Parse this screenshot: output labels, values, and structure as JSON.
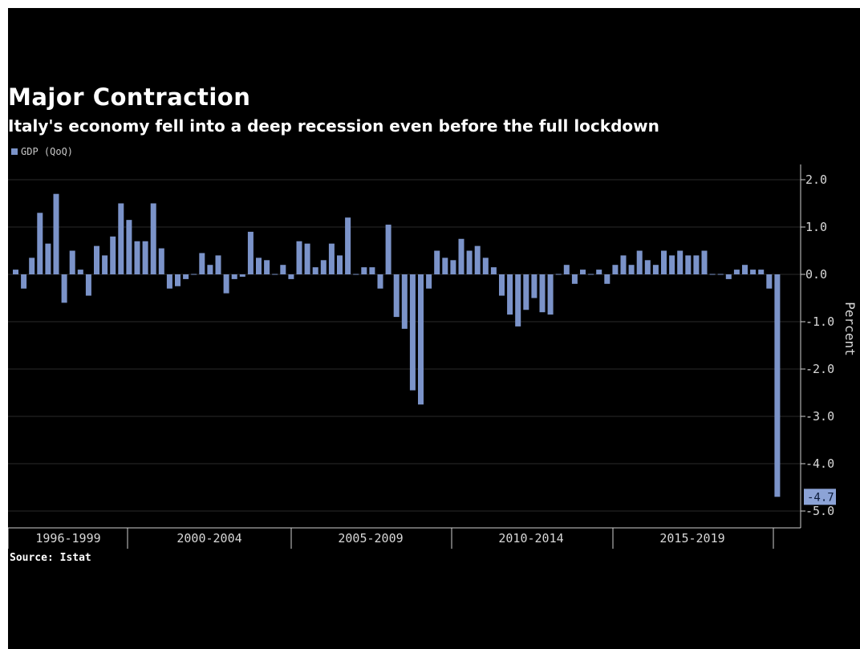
{
  "chart_data": {
    "type": "bar",
    "title": "Major Contraction",
    "subtitle": "Italy's economy fell into a deep recession even before the full lockdown",
    "ylabel": "Percent",
    "source": "Source: Istat",
    "ylim": [
      -5.0,
      2.2
    ],
    "yticks": [
      "2.0",
      "1.0",
      "0.0",
      "-1.0",
      "-2.0",
      "-3.0",
      "-4.0",
      "-5.0"
    ],
    "ytick_values": [
      2.0,
      1.0,
      0.0,
      -1.0,
      -2.0,
      -3.0,
      -4.0,
      -5.0
    ],
    "xtick_labels": [
      "1996-1999",
      "2000-2004",
      "2005-2009",
      "2010-2014",
      "2015-2019"
    ],
    "grid": true,
    "legend_position": "top-left",
    "bar_color": "#7b93c9",
    "last_value_label": "-4.7",
    "series": [
      {
        "name": "GDP (QoQ)",
        "values": [
          0.1,
          -0.3,
          0.35,
          1.3,
          0.65,
          1.7,
          -0.6,
          0.5,
          0.1,
          -0.45,
          0.6,
          0.4,
          0.8,
          1.5,
          1.15,
          0.7,
          0.7,
          1.5,
          0.55,
          -0.3,
          -0.25,
          -0.1,
          0.0,
          0.45,
          0.2,
          0.4,
          -0.4,
          -0.1,
          -0.05,
          0.9,
          0.35,
          0.3,
          0.0,
          0.2,
          -0.1,
          0.7,
          0.65,
          0.15,
          0.3,
          0.65,
          0.4,
          1.2,
          0.0,
          0.15,
          0.15,
          -0.3,
          1.05,
          -0.9,
          -1.15,
          -2.45,
          -2.75,
          -0.3,
          0.5,
          0.35,
          0.3,
          0.75,
          0.5,
          0.6,
          0.35,
          0.15,
          -0.45,
          -0.85,
          -1.1,
          -0.75,
          -0.5,
          -0.8,
          -0.85,
          0.0,
          0.2,
          -0.2,
          0.1,
          0.0,
          0.1,
          -0.2,
          0.2,
          0.4,
          0.2,
          0.5,
          0.3,
          0.2,
          0.5,
          0.4,
          0.5,
          0.4,
          0.4,
          0.5,
          0.0,
          0.0,
          -0.1,
          0.1,
          0.2,
          0.1,
          0.1,
          -0.3,
          -4.7
        ]
      }
    ]
  }
}
